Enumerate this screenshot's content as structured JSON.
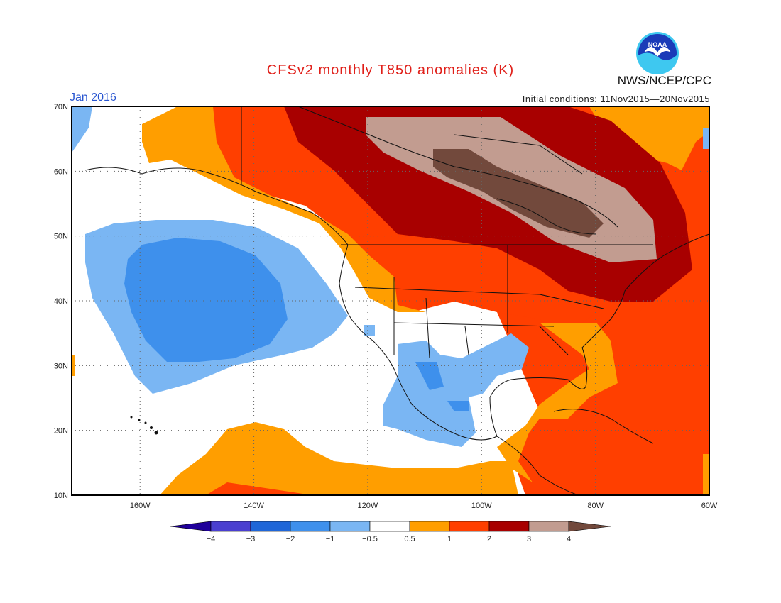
{
  "header": {
    "title": "CFSv2 monthly T850 anomalies (K)",
    "month": "Jan 2016",
    "initial_conditions": "Initial conditions: 11Nov2015—20Nov2015",
    "agency": "NWS/NCEP/CPC",
    "logo_text": "NOAA"
  },
  "map": {
    "lon_range": [
      -172,
      -60
    ],
    "lat_range": [
      10,
      70
    ],
    "lat_labels": [
      "70N",
      "60N",
      "50N",
      "40N",
      "30N",
      "20N",
      "10N"
    ],
    "lon_labels": [
      "160W",
      "140W",
      "120W",
      "100W",
      "80W",
      "60W"
    ],
    "gridline_style": "dotted"
  },
  "colorbar": {
    "unit": "K",
    "tick_labels": [
      "−4",
      "−3",
      "−2",
      "−1",
      "−0.5",
      "0.5",
      "1",
      "2",
      "3",
      "4"
    ],
    "colors": {
      "lt_m4": "#20009a",
      "m4_m3": "#4a3fd0",
      "m3_m2": "#1f66d8",
      "m2_m1": "#3e90ec",
      "m1_m05": "#7ab6f3",
      "neutral": "#ffffff",
      "p05_p1": "#ff9e00",
      "p1_p2": "#ff3f00",
      "p2_p3": "#a80000",
      "p3_p4": "#c29c90",
      "gt_p4": "#72493c"
    }
  }
}
